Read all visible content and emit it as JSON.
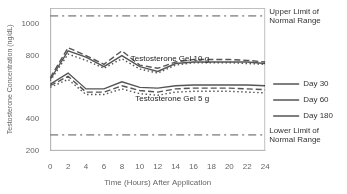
{
  "chart_data": {
    "type": "line",
    "xlabel": "Time (Hours) After Application",
    "ylabel": "Testosterone Concentration (ng/dL)",
    "x": [
      0,
      2,
      4,
      6,
      8,
      10,
      12,
      14,
      16,
      18,
      20,
      22,
      24
    ],
    "series": [
      {
        "name": "Day 30",
        "color": "#555555",
        "line_style": "solid",
        "values": [
          650,
          830,
          790,
          730,
          800,
          730,
          700,
          750,
          760,
          760,
          760,
          760,
          750
        ]
      },
      {
        "name": "Day 60",
        "color": "#555555",
        "line_style": "dashed",
        "values": [
          660,
          850,
          800,
          745,
          830,
          740,
          720,
          760,
          775,
          775,
          775,
          770,
          760
        ]
      },
      {
        "name": "Day 180",
        "color": "#555555",
        "line_style": "dotted",
        "values": [
          640,
          810,
          770,
          720,
          780,
          715,
          690,
          740,
          755,
          755,
          755,
          750,
          745
        ]
      },
      {
        "name": "Day 30",
        "color": "#555555",
        "line_style": "solid",
        "values": [
          620,
          690,
          590,
          590,
          635,
          600,
          595,
          610,
          615,
          615,
          615,
          615,
          610
        ]
      },
      {
        "name": "Day 60",
        "color": "#555555",
        "line_style": "dashed",
        "values": [
          610,
          670,
          570,
          570,
          610,
          580,
          570,
          590,
          595,
          595,
          595,
          590,
          585
        ]
      },
      {
        "name": "Day 180",
        "color": "#555555",
        "line_style": "dotted",
        "values": [
          600,
          650,
          555,
          555,
          590,
          560,
          550,
          570,
          575,
          575,
          575,
          570,
          565
        ]
      }
    ],
    "reference_lines": [
      {
        "value": 1050,
        "label": "Upper Limit of\nNormal Range",
        "line_style": "dashdot"
      },
      {
        "value": 300,
        "label": "Lower Limit of\nNormal Range",
        "line_style": "dashdot"
      }
    ],
    "annotations": [
      {
        "text": "Testosterone Gel 10 g",
        "x": 9.0,
        "y": 755
      },
      {
        "text": "Testosterone Gel 5 g",
        "x": 9.5,
        "y": 555
      }
    ],
    "xlim": [
      0,
      24
    ],
    "xticks": [
      0,
      2,
      4,
      6,
      8,
      10,
      12,
      14,
      16,
      18,
      20,
      22,
      24
    ],
    "ylim": [
      200,
      1100
    ],
    "yticks": [
      200,
      400,
      600,
      800,
      1000
    ],
    "grid": false,
    "legend": "right"
  }
}
